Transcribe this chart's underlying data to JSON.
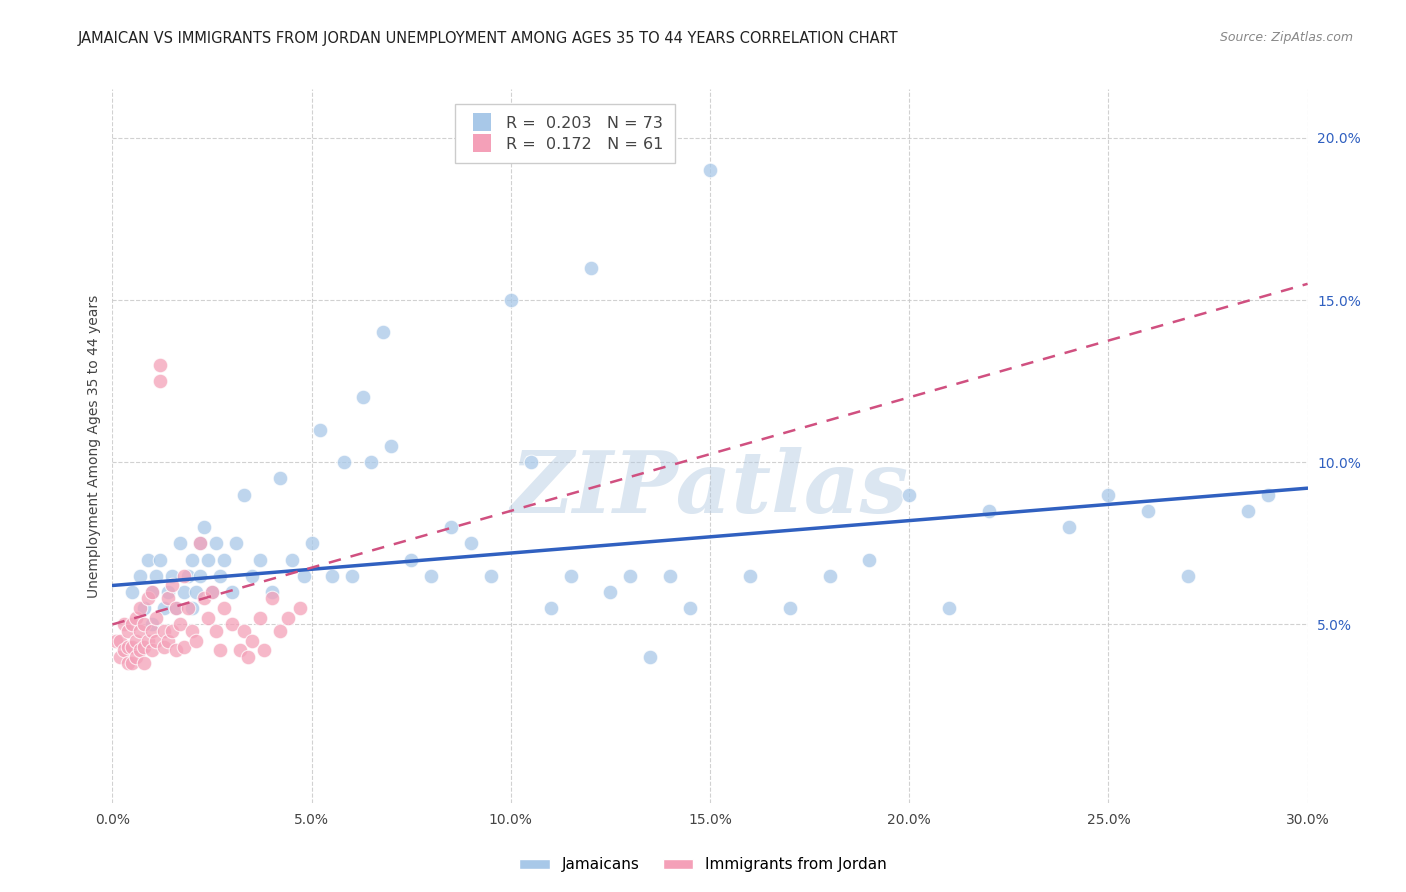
{
  "title": "JAMAICAN VS IMMIGRANTS FROM JORDAN UNEMPLOYMENT AMONG AGES 35 TO 44 YEARS CORRELATION CHART",
  "source": "Source: ZipAtlas.com",
  "ylabel": "Unemployment Among Ages 35 to 44 years",
  "xlim": [
    0.0,
    0.3
  ],
  "ylim": [
    -0.005,
    0.215
  ],
  "xticks": [
    0.0,
    0.05,
    0.1,
    0.15,
    0.2,
    0.25,
    0.3
  ],
  "yticks": [
    0.05,
    0.1,
    0.15,
    0.2
  ],
  "ytick_labels": [
    "5.0%",
    "10.0%",
    "15.0%",
    "20.0%"
  ],
  "xtick_labels": [
    "0.0%",
    "5.0%",
    "10.0%",
    "15.0%",
    "20.0%",
    "25.0%",
    "30.0%"
  ],
  "blue_R": 0.203,
  "blue_N": 73,
  "pink_R": 0.172,
  "pink_N": 61,
  "blue_color": "#a8c8e8",
  "pink_color": "#f4a0b8",
  "blue_line_color": "#3060c0",
  "pink_line_color": "#d05080",
  "legend_label_blue": "Jamaicans",
  "legend_label_pink": "Immigrants from Jordan",
  "watermark_text": "ZIPatlas",
  "background_color": "#ffffff",
  "grid_color": "#cccccc",
  "title_fontsize": 10.5,
  "label_fontsize": 10,
  "tick_fontsize": 10,
  "blue_scatter_x": [
    0.005,
    0.007,
    0.008,
    0.009,
    0.01,
    0.01,
    0.011,
    0.012,
    0.013,
    0.014,
    0.015,
    0.016,
    0.017,
    0.018,
    0.019,
    0.02,
    0.02,
    0.021,
    0.022,
    0.022,
    0.023,
    0.024,
    0.025,
    0.026,
    0.027,
    0.028,
    0.03,
    0.031,
    0.033,
    0.035,
    0.037,
    0.04,
    0.042,
    0.045,
    0.048,
    0.05,
    0.052,
    0.055,
    0.058,
    0.06,
    0.063,
    0.065,
    0.068,
    0.07,
    0.075,
    0.08,
    0.085,
    0.09,
    0.095,
    0.1,
    0.105,
    0.11,
    0.115,
    0.12,
    0.125,
    0.13,
    0.135,
    0.14,
    0.145,
    0.15,
    0.16,
    0.17,
    0.18,
    0.19,
    0.2,
    0.21,
    0.22,
    0.24,
    0.25,
    0.26,
    0.27,
    0.285,
    0.29
  ],
  "blue_scatter_y": [
    0.06,
    0.065,
    0.055,
    0.07,
    0.06,
    0.05,
    0.065,
    0.07,
    0.055,
    0.06,
    0.065,
    0.055,
    0.075,
    0.06,
    0.065,
    0.055,
    0.07,
    0.06,
    0.075,
    0.065,
    0.08,
    0.07,
    0.06,
    0.075,
    0.065,
    0.07,
    0.06,
    0.075,
    0.09,
    0.065,
    0.07,
    0.06,
    0.095,
    0.07,
    0.065,
    0.075,
    0.11,
    0.065,
    0.1,
    0.065,
    0.12,
    0.1,
    0.14,
    0.105,
    0.07,
    0.065,
    0.08,
    0.075,
    0.065,
    0.15,
    0.1,
    0.055,
    0.065,
    0.16,
    0.06,
    0.065,
    0.04,
    0.065,
    0.055,
    0.19,
    0.065,
    0.055,
    0.065,
    0.07,
    0.09,
    0.055,
    0.085,
    0.08,
    0.09,
    0.085,
    0.065,
    0.085,
    0.09
  ],
  "pink_scatter_x": [
    0.001,
    0.002,
    0.002,
    0.003,
    0.003,
    0.004,
    0.004,
    0.004,
    0.005,
    0.005,
    0.005,
    0.006,
    0.006,
    0.006,
    0.007,
    0.007,
    0.007,
    0.008,
    0.008,
    0.008,
    0.009,
    0.009,
    0.01,
    0.01,
    0.01,
    0.011,
    0.011,
    0.012,
    0.012,
    0.013,
    0.013,
    0.014,
    0.014,
    0.015,
    0.015,
    0.016,
    0.016,
    0.017,
    0.018,
    0.018,
    0.019,
    0.02,
    0.021,
    0.022,
    0.023,
    0.024,
    0.025,
    0.026,
    0.027,
    0.028,
    0.03,
    0.032,
    0.033,
    0.034,
    0.035,
    0.037,
    0.038,
    0.04,
    0.042,
    0.044,
    0.047
  ],
  "pink_scatter_y": [
    0.045,
    0.045,
    0.04,
    0.05,
    0.042,
    0.048,
    0.043,
    0.038,
    0.05,
    0.043,
    0.038,
    0.052,
    0.045,
    0.04,
    0.055,
    0.048,
    0.042,
    0.05,
    0.043,
    0.038,
    0.058,
    0.045,
    0.048,
    0.06,
    0.042,
    0.052,
    0.045,
    0.125,
    0.13,
    0.048,
    0.043,
    0.058,
    0.045,
    0.062,
    0.048,
    0.055,
    0.042,
    0.05,
    0.065,
    0.043,
    0.055,
    0.048,
    0.045,
    0.075,
    0.058,
    0.052,
    0.06,
    0.048,
    0.042,
    0.055,
    0.05,
    0.042,
    0.048,
    0.04,
    0.045,
    0.052,
    0.042,
    0.058,
    0.048,
    0.052,
    0.055
  ],
  "blue_trend_x0": 0.0,
  "blue_trend_x1": 0.3,
  "blue_trend_y0": 0.062,
  "blue_trend_y1": 0.092,
  "pink_trend_x0": 0.0,
  "pink_trend_x1": 0.3,
  "pink_trend_y0": 0.05,
  "pink_trend_y1": 0.155
}
